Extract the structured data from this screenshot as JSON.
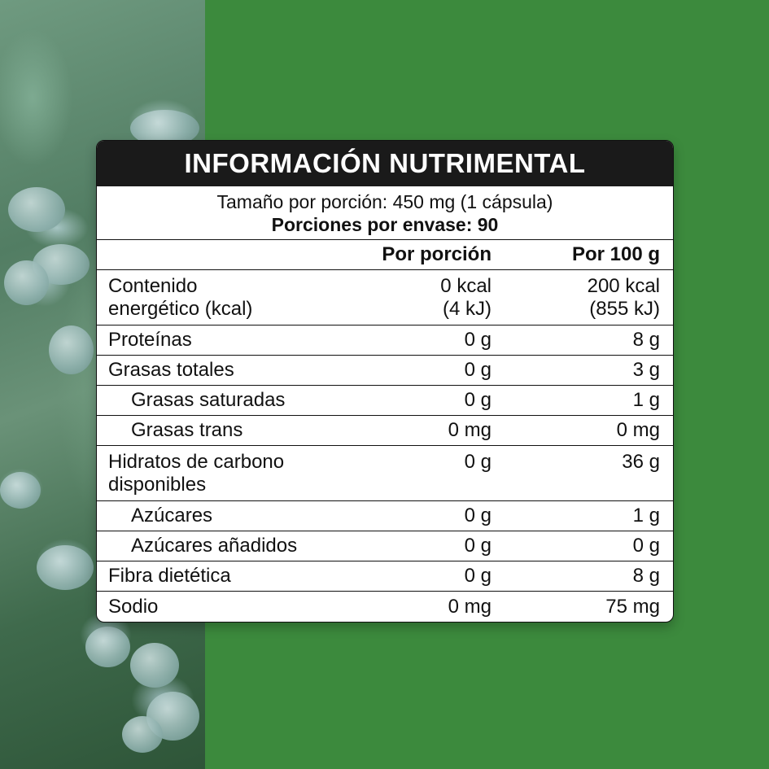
{
  "label": {
    "title": "INFORMACIÓN NUTRIMENTAL",
    "serving_size": "Tamaño por porción: 450 mg (1 cápsula)",
    "servings_per_container": "Porciones por envase: 90",
    "columns": {
      "nutrient": "",
      "per_serving": "Por porción",
      "per_100g": "Por 100 g"
    },
    "rows": [
      {
        "name_line1": "Contenido",
        "name_line2": "energético (kcal)",
        "per_serving_line1": "0 kcal",
        "per_serving_line2": "(4  kJ)",
        "per_100g_line1": "200 kcal",
        "per_100g_line2": "(855 kJ)"
      },
      {
        "name": "Proteínas",
        "per_serving": "0 g",
        "per_100g": "8 g"
      },
      {
        "name": "Grasas totales",
        "per_serving": "0 g",
        "per_100g": "3 g"
      },
      {
        "name": "Grasas saturadas",
        "per_serving": "0 g",
        "per_100g": "1 g"
      },
      {
        "name": "Grasas trans",
        "per_serving": "0 mg",
        "per_100g": "0 mg"
      },
      {
        "name_line1": "Hidratos de carbono",
        "name_line2": "disponibles",
        "per_serving": "0 g",
        "per_100g": "36 g"
      },
      {
        "name": "Azúcares",
        "per_serving": "0 g",
        "per_100g": "1 g"
      },
      {
        "name": "Azúcares añadidos",
        "per_serving": "0 g",
        "per_100g": "0 g"
      },
      {
        "name": "Fibra dietética",
        "per_serving": "0 g",
        "per_100g": "8 g"
      },
      {
        "name": "Sodio",
        "per_serving": "0 mg",
        "per_100g": "75 mg"
      }
    ]
  },
  "colors": {
    "background_green": "#3c8a3d",
    "title_bar": "#1a1a1a",
    "card": "#ffffff"
  }
}
